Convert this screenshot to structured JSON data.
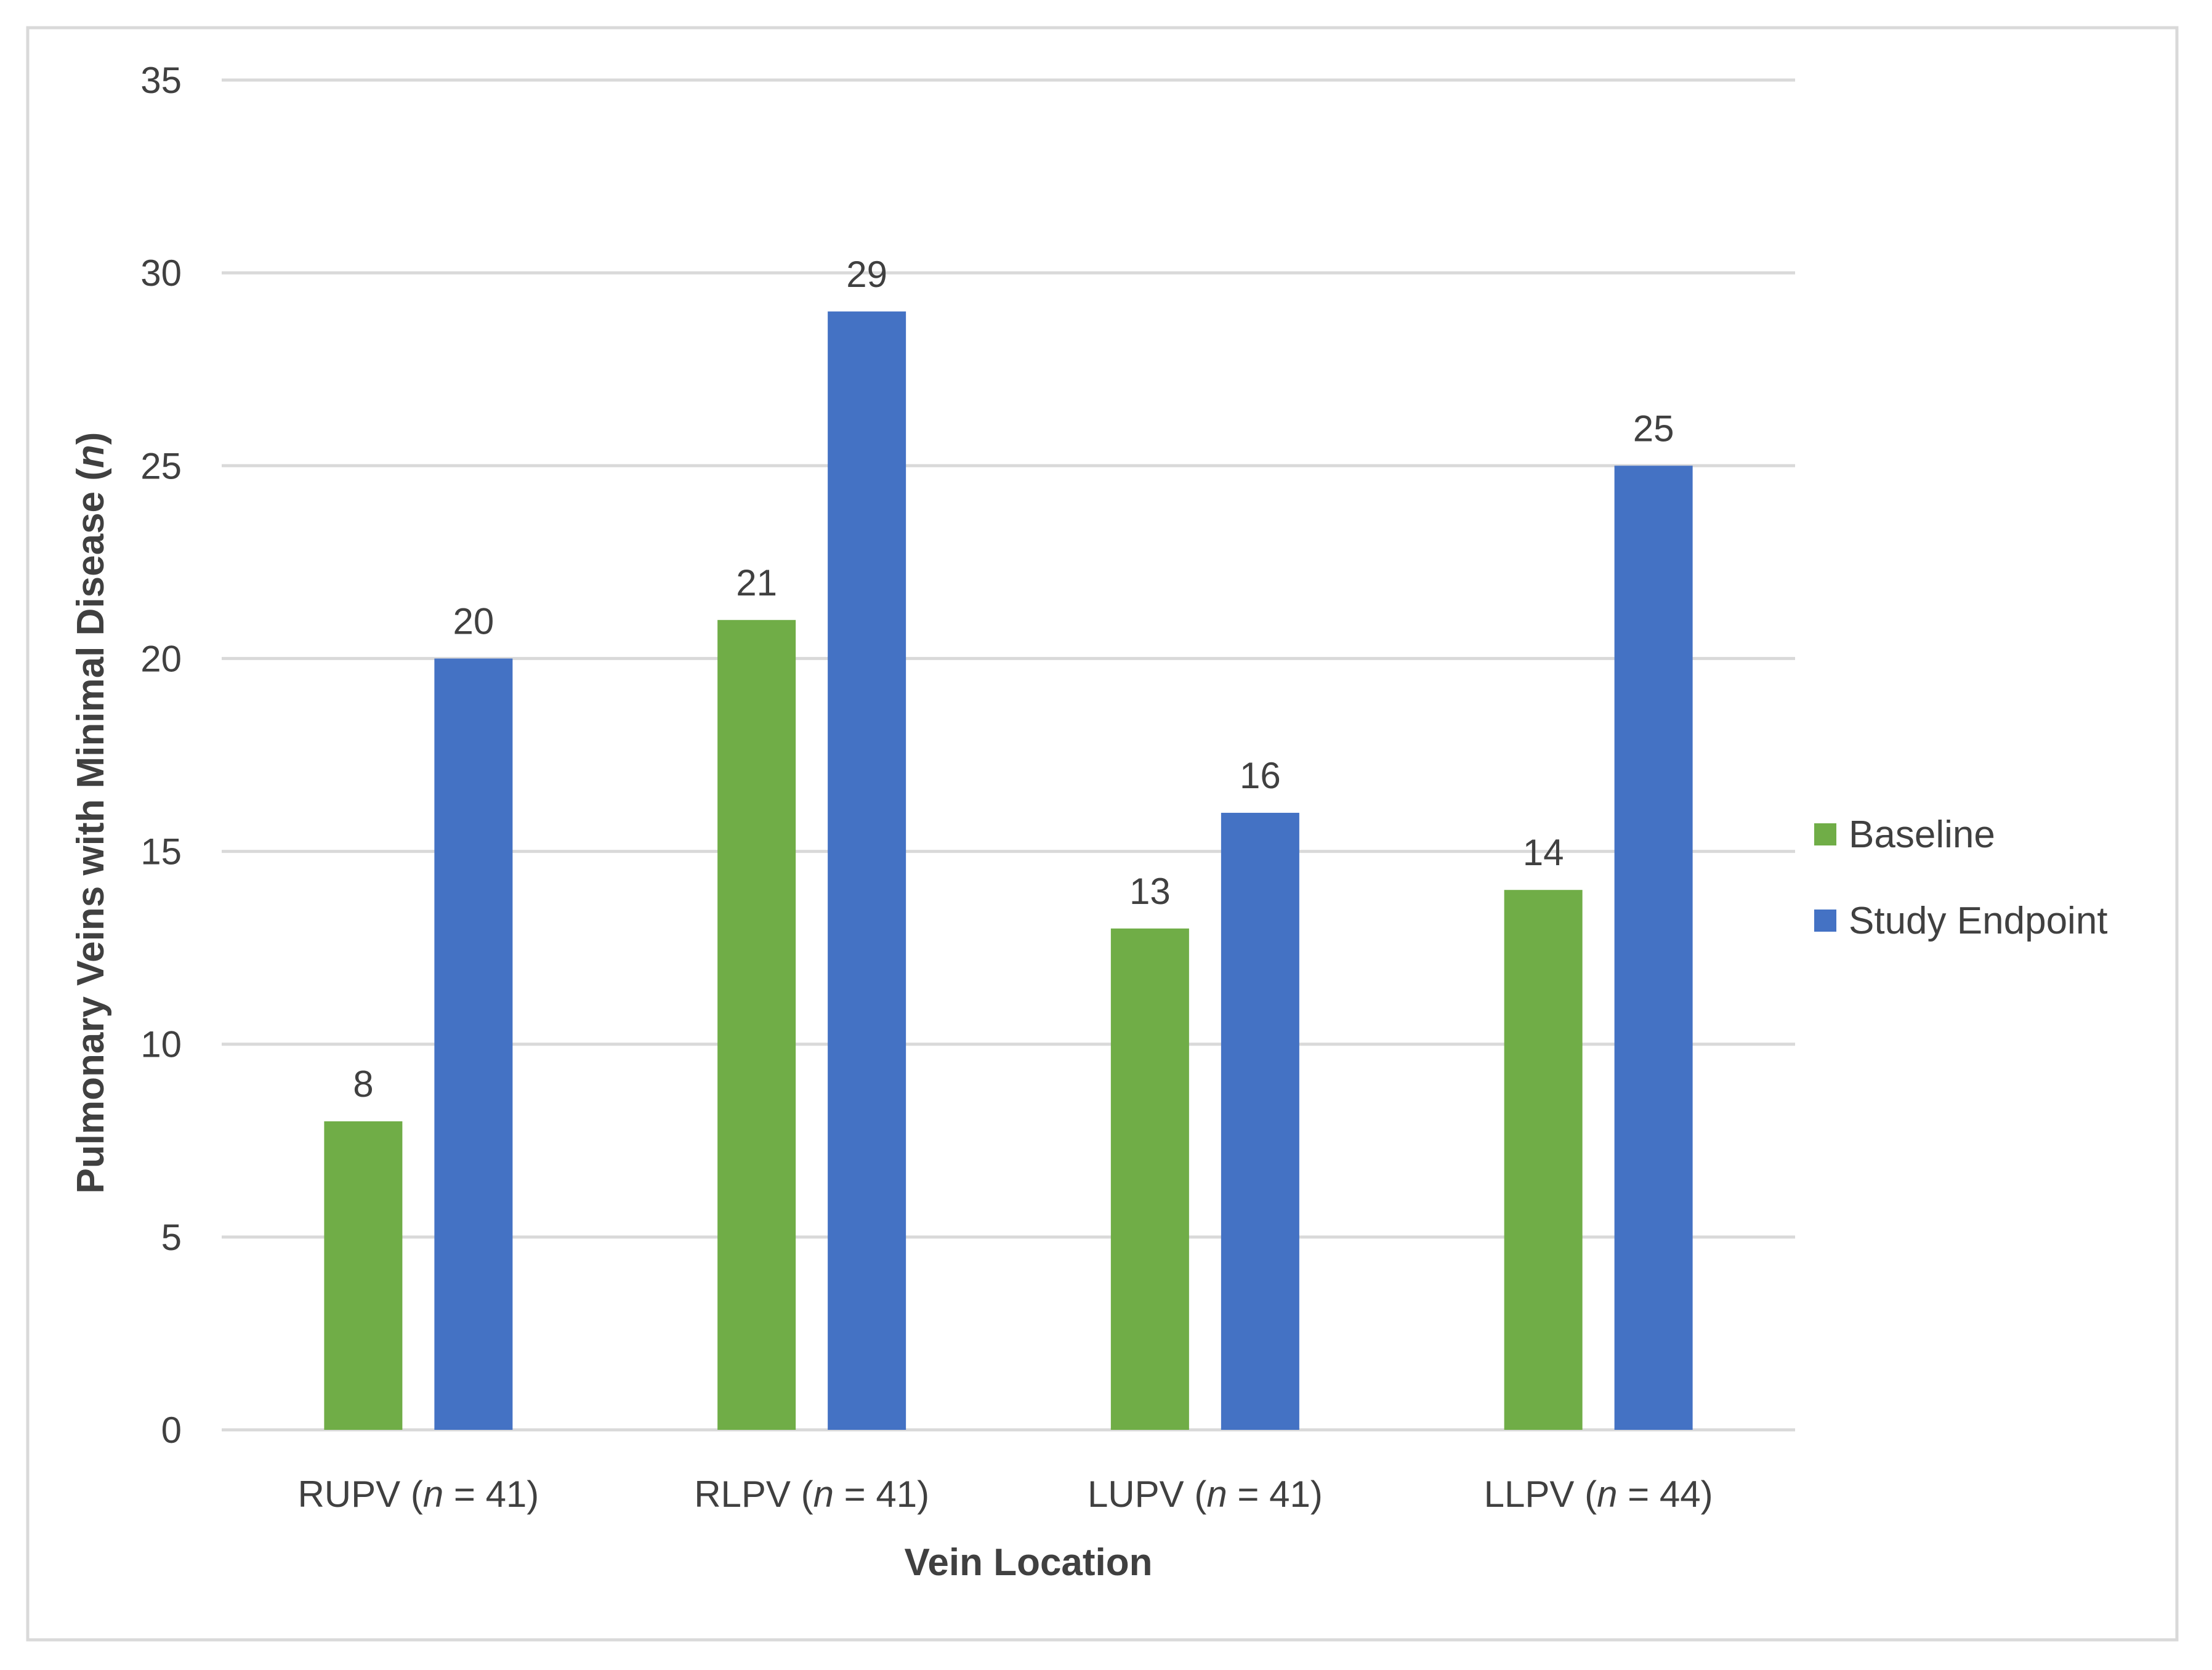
{
  "chart_data": {
    "type": "bar",
    "title": "",
    "xlabel": "Vein Location",
    "ylabel_main": "Pulmonary Veins with Minimal Disease (",
    "ylabel_italic": "n",
    "ylabel_end": ")",
    "ylim": [
      0,
      35
    ],
    "ytick_step": 5,
    "yticks": [
      "0",
      "5",
      "10",
      "15",
      "20",
      "25",
      "30",
      "35"
    ],
    "grid": true,
    "legend_position": "right",
    "categories": [
      {
        "name": "RUPV (",
        "italic": "n",
        "rest": " = 41)"
      },
      {
        "name": "RLPV (",
        "italic": "n",
        "rest": " = 41)"
      },
      {
        "name": "LUPV (",
        "italic": "n",
        "rest": " = 41)"
      },
      {
        "name": "LLPV (",
        "italic": "n",
        "rest": " = 44)"
      }
    ],
    "series": [
      {
        "name": "Baseline",
        "color": "#70AD47",
        "values": [
          8,
          21,
          13,
          14
        ]
      },
      {
        "name": "Study Endpoint",
        "color": "#4472C4",
        "values": [
          20,
          29,
          16,
          25
        ]
      }
    ]
  },
  "colors": {
    "gridline": "#D9D9D9",
    "frame_border": "#D9D9D9",
    "text": "#404040"
  }
}
